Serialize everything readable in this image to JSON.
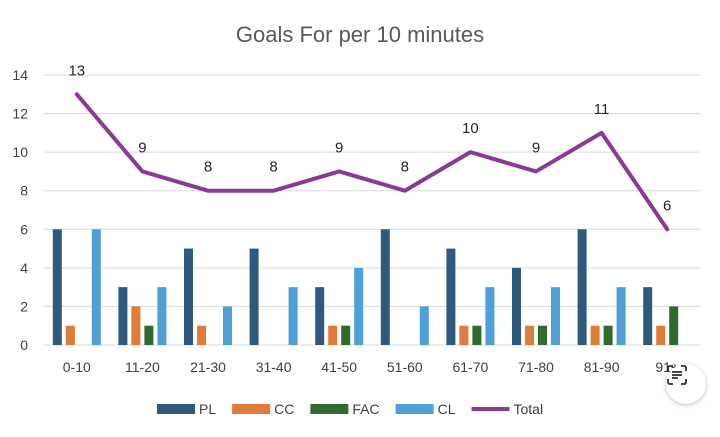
{
  "chart_data": {
    "type": "bar",
    "title": "Goals For per 10 minutes",
    "categories": [
      "0-10",
      "11-20",
      "21-30",
      "31-40",
      "41-50",
      "51-60",
      "61-70",
      "71-80",
      "81-90",
      "91+"
    ],
    "ylim": [
      0,
      14
    ],
    "yticks": [
      0,
      2,
      4,
      6,
      8,
      10,
      12,
      14
    ],
    "grid": true,
    "legend_position": "bottom",
    "series": [
      {
        "name": "PL",
        "type": "bar",
        "color": "#2E5A7E",
        "values": [
          6,
          3,
          5,
          5,
          3,
          6,
          5,
          4,
          6,
          3
        ]
      },
      {
        "name": "CC",
        "type": "bar",
        "color": "#E07B39",
        "values": [
          1,
          2,
          1,
          0,
          1,
          0,
          1,
          1,
          1,
          1
        ]
      },
      {
        "name": "FAC",
        "type": "bar",
        "color": "#2F6B2F",
        "values": [
          0,
          1,
          0,
          0,
          1,
          0,
          1,
          1,
          1,
          2
        ]
      },
      {
        "name": "CL",
        "type": "bar",
        "color": "#4EA0D6",
        "values": [
          6,
          3,
          2,
          3,
          4,
          2,
          3,
          3,
          3,
          0
        ]
      },
      {
        "name": "Total",
        "type": "line",
        "color": "#8B3A94",
        "values": [
          13,
          9,
          8,
          8,
          9,
          8,
          10,
          9,
          11,
          6
        ]
      }
    ]
  },
  "overlay": {
    "lens_icon": "lens-scan-icon"
  }
}
